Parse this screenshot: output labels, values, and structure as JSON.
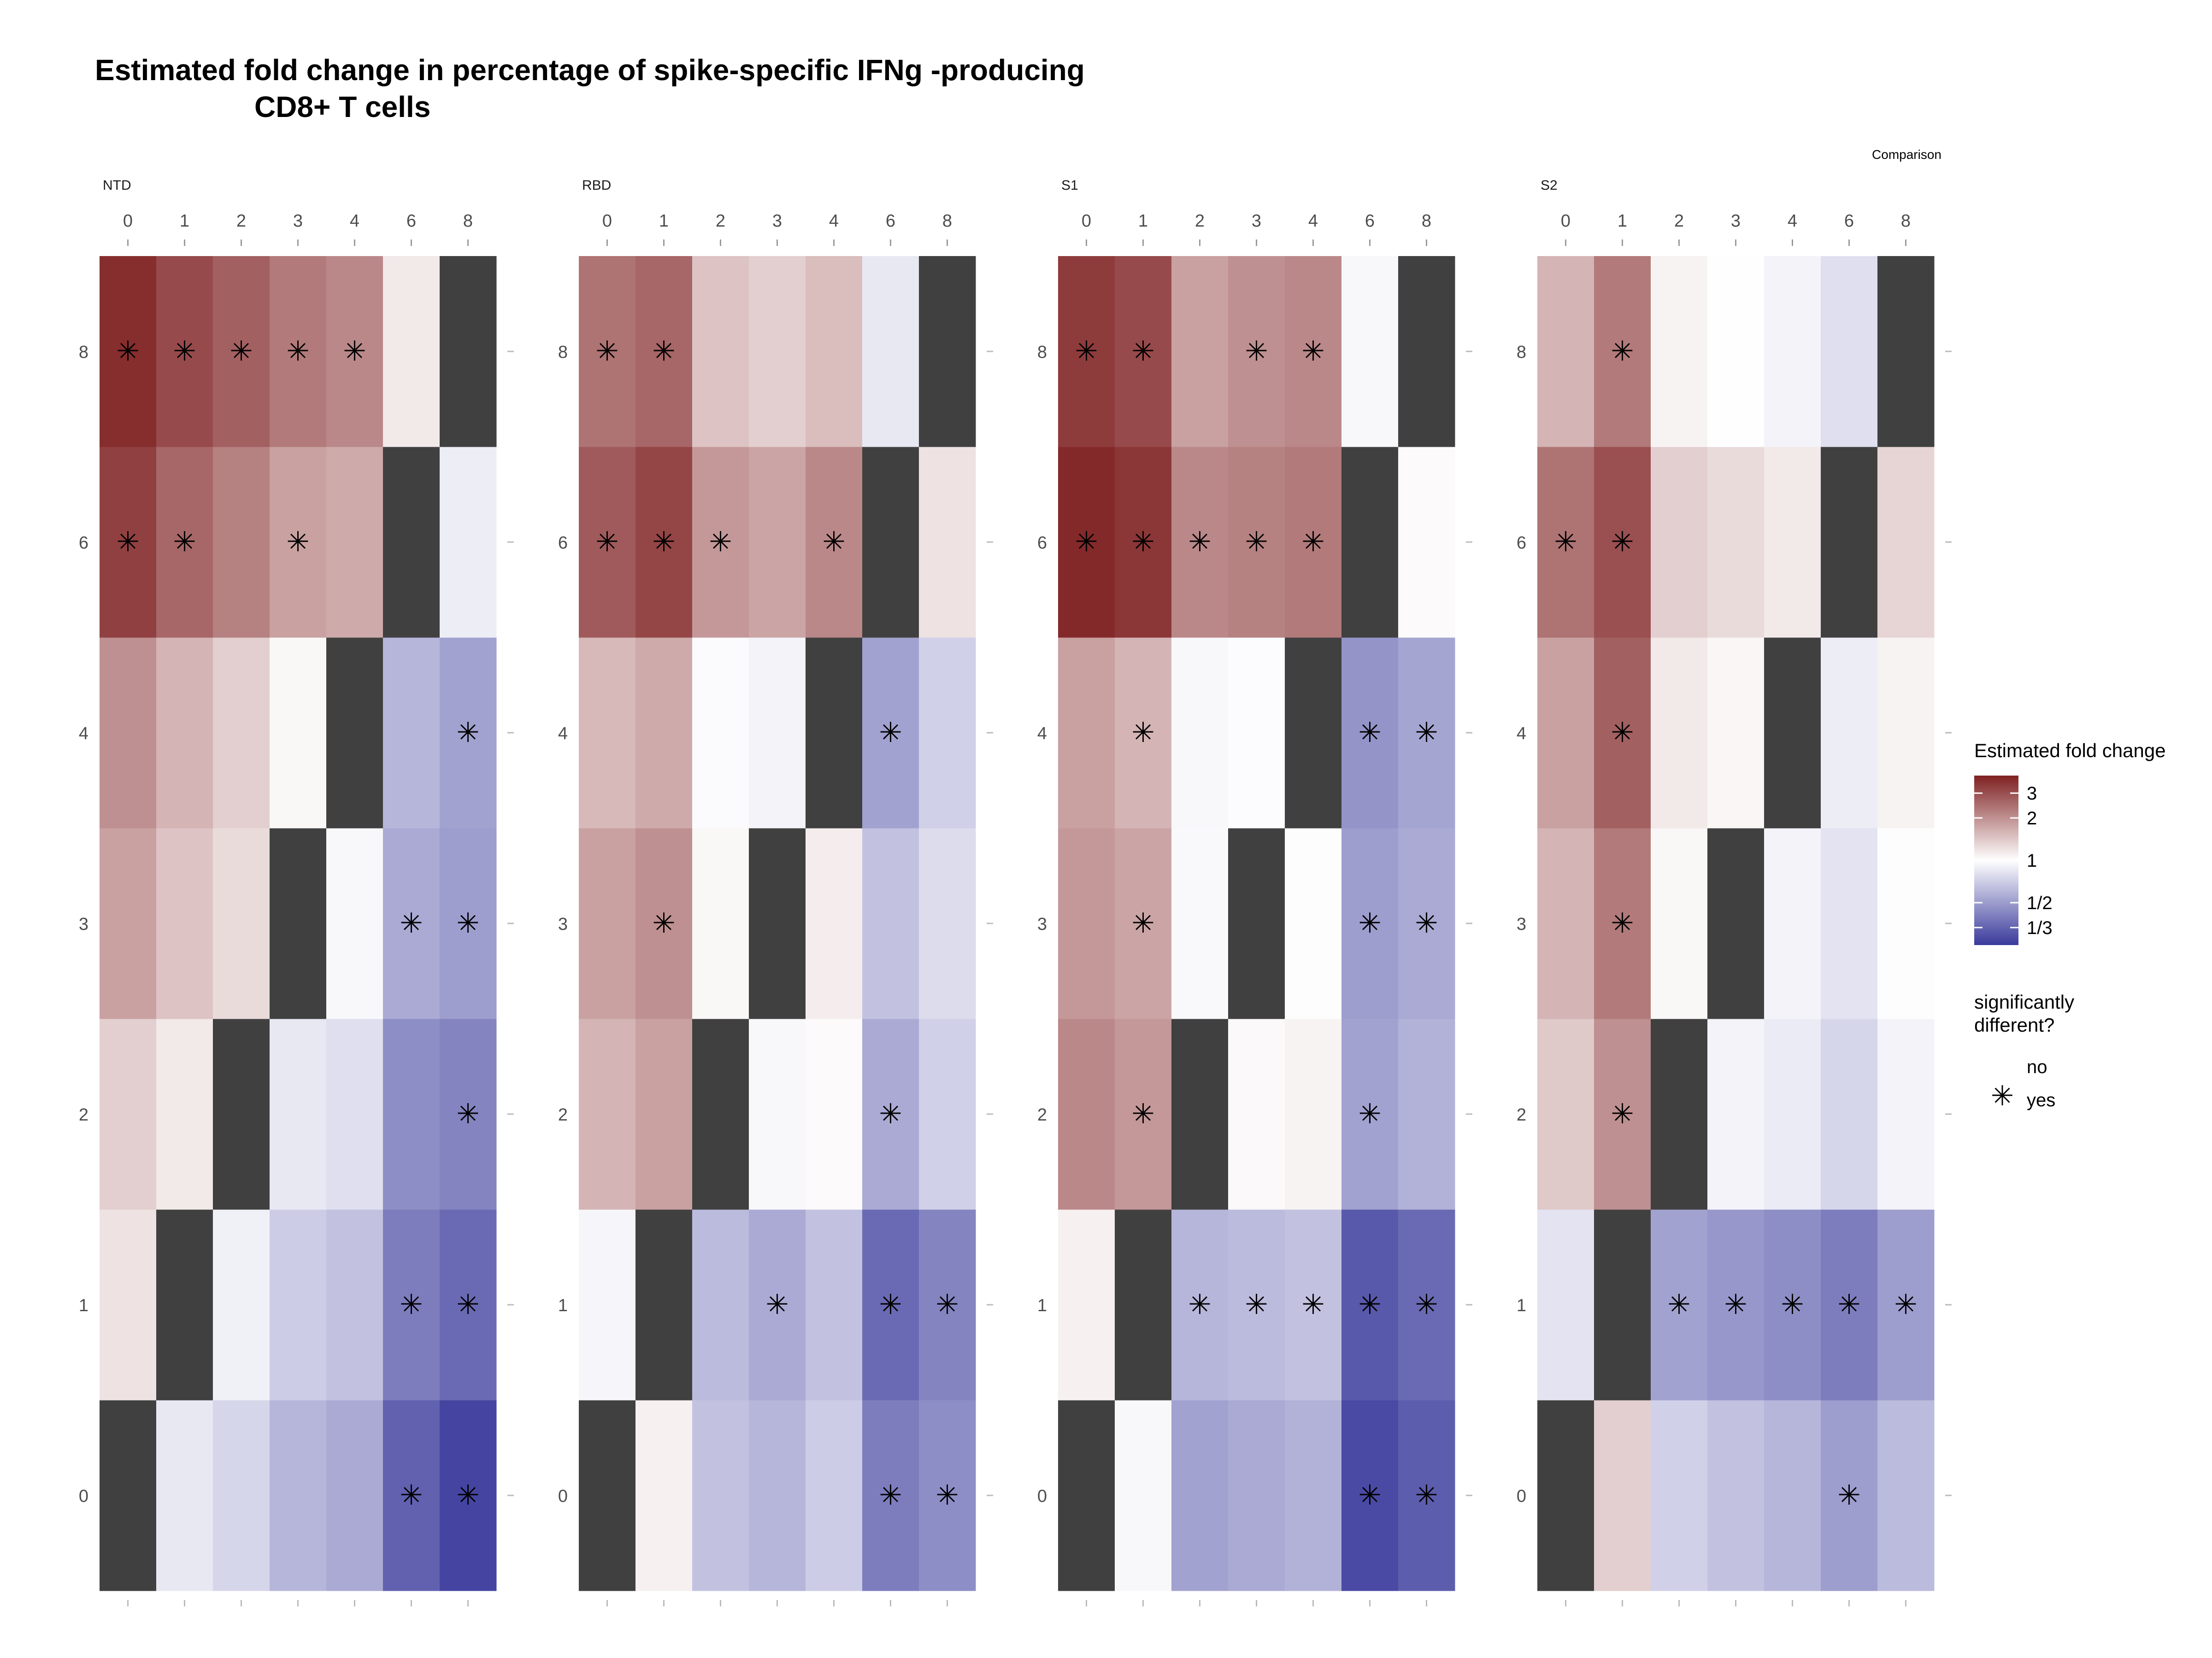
{
  "chart_data": {
    "type": "heatmap",
    "title_lines": [
      "Estimated fold change in percentage of spike-specific IFNg -producing",
      "CD8+ T cells"
    ],
    "facet_strip_text": "Comparison",
    "x_categories": [
      "0",
      "1",
      "2",
      "3",
      "4",
      "6",
      "8"
    ],
    "y_categories": [
      "0",
      "1",
      "2",
      "3",
      "4",
      "6",
      "8"
    ],
    "fill_legend": {
      "title": "Estimated fold change",
      "scale": "log",
      "low_color": "#3a3a9c",
      "mid_color": "#ffffff",
      "high_color": "#7f2122",
      "limits": [
        0.25,
        4
      ],
      "breaks": [
        3,
        2,
        1,
        0.5,
        0.333
      ],
      "break_labels": [
        "3",
        "2",
        "1",
        "1/2",
        "1/3"
      ]
    },
    "shape_legend": {
      "title": "significantly different?",
      "title_lines": [
        "significantly",
        "different?"
      ],
      "entries": [
        {
          "label": "no",
          "symbol": ""
        },
        {
          "label": "yes",
          "symbol": "✳"
        }
      ]
    },
    "na_color": "#404040",
    "facets": [
      {
        "name": "NTD",
        "values": [
          [
            null,
            0.85,
            0.75,
            0.6,
            0.55,
            0.33,
            0.27
          ],
          [
            1.2,
            null,
            0.9,
            0.7,
            0.65,
            0.4,
            0.35
          ],
          [
            1.35,
            1.15,
            null,
            0.85,
            0.8,
            0.45,
            0.42
          ],
          [
            1.8,
            1.45,
            1.25,
            null,
            0.95,
            0.55,
            0.5
          ],
          [
            2.0,
            1.6,
            1.35,
            1.05,
            null,
            0.6,
            0.52
          ],
          [
            3.3,
            2.6,
            2.2,
            1.8,
            1.7,
            null,
            0.88
          ],
          [
            3.7,
            3.1,
            2.7,
            2.3,
            2.1,
            1.15,
            null
          ]
        ],
        "significant": [
          [
            false,
            false,
            false,
            false,
            false,
            true,
            true
          ],
          [
            false,
            false,
            false,
            false,
            false,
            true,
            true
          ],
          [
            false,
            false,
            false,
            false,
            false,
            false,
            true
          ],
          [
            false,
            false,
            false,
            false,
            false,
            true,
            true
          ],
          [
            false,
            false,
            false,
            false,
            false,
            false,
            true
          ],
          [
            true,
            true,
            false,
            true,
            false,
            false,
            false
          ],
          [
            true,
            true,
            true,
            true,
            true,
            false,
            false
          ]
        ]
      },
      {
        "name": "RBD",
        "values": [
          [
            null,
            1.1,
            0.65,
            0.6,
            0.7,
            0.4,
            0.45
          ],
          [
            0.93,
            null,
            0.62,
            0.55,
            0.65,
            0.35,
            0.42
          ],
          [
            1.6,
            1.8,
            null,
            0.95,
            1.03,
            0.55,
            0.72
          ],
          [
            1.8,
            2.0,
            1.05,
            null,
            1.12,
            0.65,
            0.78
          ],
          [
            1.55,
            1.7,
            0.97,
            0.92,
            null,
            0.52,
            0.72
          ],
          [
            2.8,
            3.2,
            1.9,
            1.75,
            2.1,
            null,
            1.2
          ],
          [
            2.4,
            2.6,
            1.45,
            1.35,
            1.5,
            0.85,
            null
          ]
        ],
        "significant": [
          [
            false,
            false,
            false,
            false,
            false,
            true,
            true
          ],
          [
            false,
            false,
            false,
            true,
            false,
            true,
            true
          ],
          [
            false,
            false,
            false,
            false,
            false,
            true,
            false
          ],
          [
            false,
            true,
            false,
            false,
            false,
            false,
            false
          ],
          [
            false,
            false,
            false,
            false,
            false,
            true,
            false
          ],
          [
            true,
            true,
            true,
            false,
            true,
            false,
            false
          ],
          [
            true,
            true,
            false,
            false,
            false,
            false,
            false
          ]
        ]
      },
      {
        "name": "S1",
        "values": [
          [
            null,
            0.95,
            0.52,
            0.55,
            0.58,
            0.28,
            0.32
          ],
          [
            1.1,
            null,
            0.6,
            0.62,
            0.65,
            0.31,
            0.35
          ],
          [
            2.1,
            1.9,
            null,
            1.04,
            1.08,
            0.52,
            0.58
          ],
          [
            1.9,
            1.75,
            0.96,
            null,
            1.01,
            0.5,
            0.55
          ],
          [
            1.8,
            1.6,
            0.95,
            0.98,
            null,
            0.47,
            0.53
          ],
          [
            3.8,
            3.5,
            2.1,
            2.2,
            2.3,
            null,
            1.03
          ],
          [
            3.4,
            3.1,
            1.8,
            2.0,
            2.1,
            0.95,
            null
          ]
        ],
        "significant": [
          [
            false,
            false,
            false,
            false,
            false,
            true,
            true
          ],
          [
            false,
            false,
            true,
            true,
            true,
            true,
            true
          ],
          [
            false,
            true,
            false,
            false,
            false,
            true,
            false
          ],
          [
            false,
            true,
            false,
            false,
            false,
            true,
            true
          ],
          [
            false,
            true,
            false,
            false,
            false,
            true,
            true
          ],
          [
            true,
            true,
            true,
            true,
            true,
            false,
            false
          ],
          [
            true,
            true,
            false,
            true,
            true,
            false,
            false
          ]
        ]
      },
      {
        "name": "S2",
        "values": [
          [
            null,
            1.35,
            0.72,
            0.65,
            0.6,
            0.5,
            0.62
          ],
          [
            0.82,
            null,
            0.52,
            0.48,
            0.45,
            0.4,
            0.5
          ],
          [
            1.4,
            2.0,
            null,
            0.92,
            0.87,
            0.75,
            0.92
          ],
          [
            1.6,
            2.3,
            1.05,
            null,
            0.92,
            0.82,
            1.01
          ],
          [
            1.8,
            2.7,
            1.15,
            1.06,
            null,
            0.88,
            1.08
          ],
          [
            2.4,
            3.0,
            1.35,
            1.25,
            1.15,
            null,
            1.3
          ],
          [
            1.6,
            2.3,
            1.08,
            0.99,
            0.92,
            0.8,
            null
          ]
        ],
        "significant": [
          [
            false,
            false,
            false,
            false,
            false,
            true,
            false
          ],
          [
            false,
            false,
            true,
            true,
            true,
            true,
            true
          ],
          [
            false,
            true,
            false,
            false,
            false,
            false,
            false
          ],
          [
            false,
            true,
            false,
            false,
            false,
            false,
            false
          ],
          [
            false,
            true,
            false,
            false,
            false,
            false,
            false
          ],
          [
            true,
            true,
            false,
            false,
            false,
            false,
            false
          ],
          [
            false,
            true,
            false,
            false,
            false,
            false,
            false
          ]
        ]
      }
    ]
  }
}
